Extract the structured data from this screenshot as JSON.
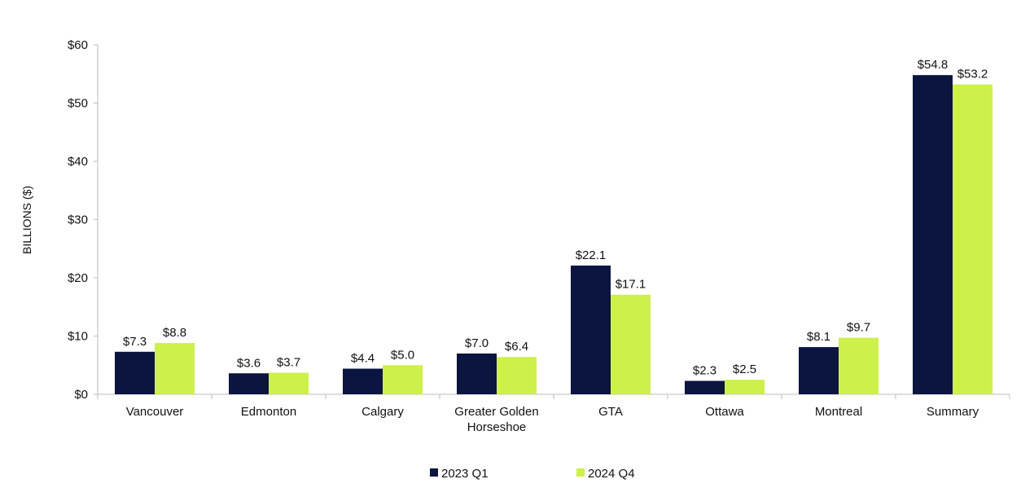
{
  "chart_data": {
    "type": "bar",
    "title": "",
    "xlabel": "",
    "ylabel": "BILLIONS ($)",
    "ylim": [
      0,
      60
    ],
    "yticks": [
      0,
      10,
      20,
      30,
      40,
      50,
      60
    ],
    "ytick_labels": [
      "$0",
      "$10",
      "$20",
      "$30",
      "$40",
      "$50",
      "$60"
    ],
    "grid": false,
    "legend_position": "bottom",
    "categories": [
      "Vancouver",
      "Edmonton",
      "Calgary",
      "Greater Golden Horseshoe",
      "GTA",
      "Ottawa",
      "Montreal",
      "Summary"
    ],
    "series": [
      {
        "name": "2023 Q1",
        "color": "#0c1440",
        "values": [
          7.3,
          3.6,
          4.4,
          7.0,
          22.1,
          2.3,
          8.1,
          54.8
        ],
        "labels": [
          "$7.3",
          "$3.6",
          "$4.4",
          "$7.0",
          "$22.1",
          "$2.3",
          "$8.1",
          "$54.8"
        ]
      },
      {
        "name": "2024 Q4",
        "color": "#cdf04a",
        "values": [
          8.8,
          3.7,
          5.0,
          6.4,
          17.1,
          2.5,
          9.7,
          53.2
        ],
        "labels": [
          "$8.8",
          "$3.7",
          "$5.0",
          "$6.4",
          "$17.1",
          "$2.5",
          "$9.7",
          "$53.2"
        ]
      }
    ]
  }
}
